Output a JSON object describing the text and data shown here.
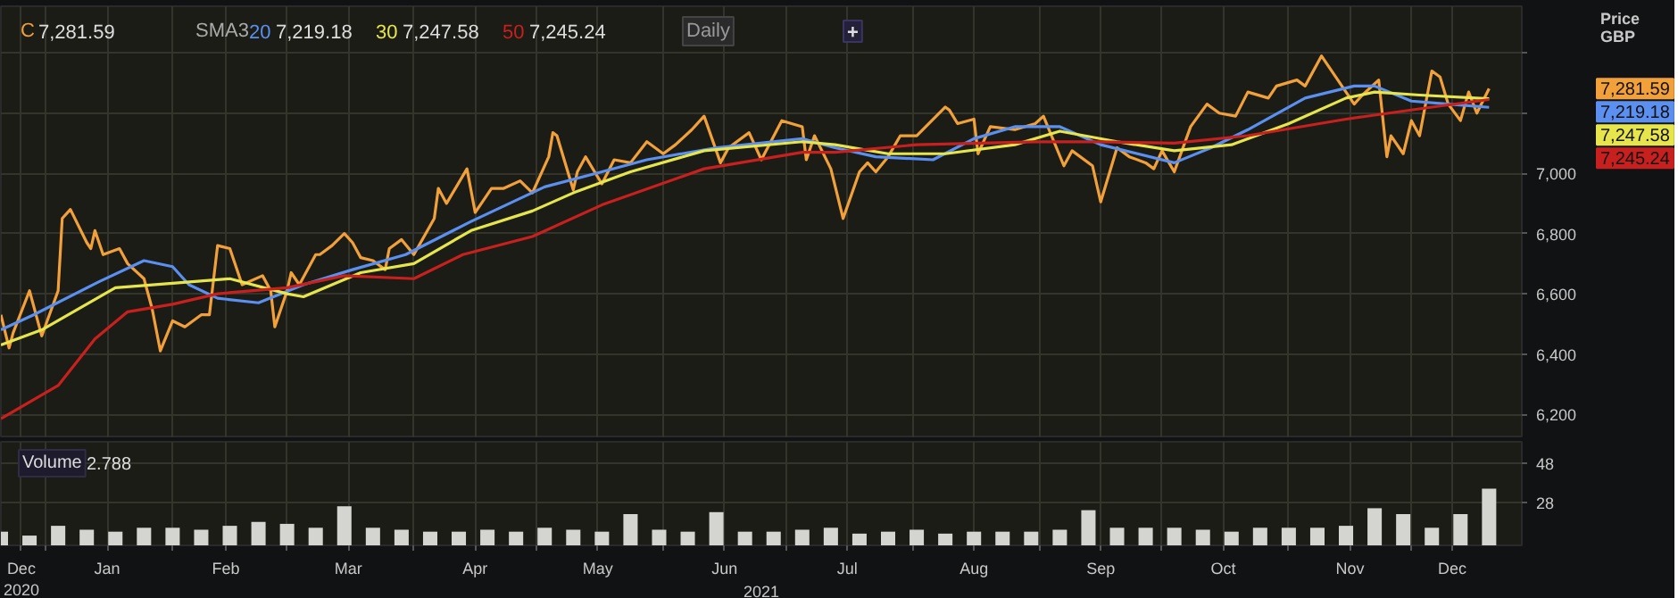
{
  "chart_data": [
    {
      "type": "line",
      "ylabel": "Price\nGBP",
      "legend": "top left",
      "grid": true,
      "tick_labels": "y",
      "xlim": [
        "2020-12-21",
        "2021-12-28"
      ],
      "ylim": [
        6120,
        7555
      ],
      "yticks": [
        {
          "value": 6200,
          "label": "6,200"
        },
        {
          "value": 6400,
          "label": "6,400"
        },
        {
          "value": 6600,
          "label": "6,600"
        },
        {
          "value": 6800,
          "label": "6,800"
        },
        {
          "value": 7000,
          "label": "7,000"
        },
        {
          "value": 7200,
          "label": null
        },
        {
          "value": 7400,
          "label": null
        }
      ],
      "xticks": [
        {
          "value": "2020-12-26",
          "label": null
        },
        {
          "value": "2021-01-01",
          "label": null
        },
        {
          "value": "2021-01-16",
          "label": null
        },
        {
          "value": "2021-02-01",
          "label": null
        },
        {
          "value": "2021-02-14",
          "label": null
        },
        {
          "value": "2021-03-01",
          "label": null
        },
        {
          "value": "2021-03-16",
          "label": null
        },
        {
          "value": "2021-04-01",
          "label": null
        },
        {
          "value": "2021-04-16",
          "label": null
        },
        {
          "value": "2021-05-01",
          "label": null
        },
        {
          "value": "2021-05-16",
          "label": null
        },
        {
          "value": "2021-06-01",
          "label": null
        },
        {
          "value": "2021-06-16",
          "label": null
        },
        {
          "value": "2021-07-01",
          "label": null
        },
        {
          "value": "2021-07-16",
          "label": null
        },
        {
          "value": "2021-08-01",
          "label": null
        },
        {
          "value": "2021-08-16",
          "label": null
        },
        {
          "value": "2021-09-01",
          "label": null
        },
        {
          "value": "2021-09-16",
          "label": null
        },
        {
          "value": "2021-10-01",
          "label": null
        },
        {
          "value": "2021-10-16",
          "label": null
        },
        {
          "value": "2021-11-01",
          "label": null
        },
        {
          "value": "2021-11-16",
          "label": null
        },
        {
          "value": "2021-12-01",
          "label": null
        },
        {
          "value": "2021-12-11",
          "label": null
        }
      ],
      "series": [
        {
          "name": "C",
          "color": "#f2a03a",
          "x": [
            "2020-12-21",
            "2020-12-23",
            "2020-12-24",
            "2020-12-28",
            "2020-12-31",
            "2021-01-04",
            "2021-01-05",
            "2021-01-07",
            "2021-01-11",
            "2021-01-12",
            "2021-01-13",
            "2021-01-15",
            "2021-01-19",
            "2021-01-21",
            "2021-01-25",
            "2021-01-27",
            "2021-01-29",
            "2021-02-01",
            "2021-02-04",
            "2021-02-08",
            "2021-02-10",
            "2021-02-12",
            "2021-02-15",
            "2021-02-18",
            "2021-02-23",
            "2021-02-25",
            "2021-02-26",
            "2021-03-01",
            "2021-03-02",
            "2021-03-04",
            "2021-03-08",
            "2021-03-09",
            "2021-03-12",
            "2021-03-15",
            "2021-03-17",
            "2021-03-19",
            "2021-03-22",
            "2021-03-25",
            "2021-03-26",
            "2021-03-29",
            "2021-04-01",
            "2021-04-06",
            "2021-04-07",
            "2021-04-09",
            "2021-04-14",
            "2021-04-16",
            "2021-04-20",
            "2021-04-23",
            "2021-04-27",
            "2021-04-30",
            "2021-05-04",
            "2021-05-05",
            "2021-05-06",
            "2021-05-10",
            "2021-05-11",
            "2021-05-13",
            "2021-05-17",
            "2021-05-20",
            "2021-05-24",
            "2021-05-28",
            "2021-06-01",
            "2021-06-04",
            "2021-06-08",
            "2021-06-11",
            "2021-06-15",
            "2021-06-17",
            "2021-06-22",
            "2021-06-25",
            "2021-06-30",
            "2021-07-05",
            "2021-07-06",
            "2021-07-08",
            "2021-07-12",
            "2021-07-15",
            "2021-07-19",
            "2021-07-21",
            "2021-07-23",
            "2021-07-26",
            "2021-07-29",
            "2021-08-02",
            "2021-08-09",
            "2021-08-10",
            "2021-08-12",
            "2021-08-16",
            "2021-08-17",
            "2021-08-20",
            "2021-08-26",
            "2021-08-31",
            "2021-09-02",
            "2021-09-07",
            "2021-09-09",
            "2021-09-14",
            "2021-09-16",
            "2021-09-20",
            "2021-09-23",
            "2021-09-27",
            "2021-09-29",
            "2021-10-01",
            "2021-10-04",
            "2021-10-08",
            "2021-10-12",
            "2021-10-15",
            "2021-10-19",
            "2021-10-22",
            "2021-10-27",
            "2021-10-29",
            "2021-11-03",
            "2021-11-05",
            "2021-11-09",
            "2021-11-11",
            "2021-11-17",
            "2021-11-19",
            "2021-11-23",
            "2021-11-25",
            "2021-11-26",
            "2021-11-29",
            "2021-12-01",
            "2021-12-03",
            "2021-12-06",
            "2021-12-08",
            "2021-12-10",
            "2021-12-13",
            "2021-12-15",
            "2021-12-17",
            "2021-12-20"
          ],
          "values": [
            6530,
            6420,
            6470,
            6610,
            6460,
            6610,
            6850,
            6880,
            6770,
            6750,
            6810,
            6730,
            6750,
            6700,
            6650,
            6550,
            6410,
            6510,
            6490,
            6530,
            6530,
            6760,
            6750,
            6630,
            6660,
            6610,
            6490,
            6610,
            6670,
            6630,
            6730,
            6730,
            6760,
            6800,
            6770,
            6720,
            6710,
            6680,
            6750,
            6780,
            6730,
            6850,
            6950,
            6900,
            7015,
            6870,
            6950,
            6950,
            6975,
            6935,
            7055,
            7135,
            7125,
            6945,
            7005,
            7055,
            6965,
            7045,
            7035,
            7105,
            7065,
            7095,
            7145,
            7190,
            7035,
            7085,
            7135,
            7045,
            7175,
            7155,
            7045,
            7125,
            7015,
            6850,
            7005,
            7035,
            7005,
            7055,
            7125,
            7125,
            7220,
            7210,
            7165,
            7180,
            7065,
            7155,
            7145,
            7165,
            7190,
            7025,
            7075,
            7025,
            6905,
            7085,
            7055,
            7035,
            7015,
            7075,
            7005,
            7155,
            7230,
            7200,
            7190,
            7270,
            7250,
            7290,
            7310,
            7290,
            7390,
            7350,
            7230,
            7260,
            7310,
            7055,
            7125,
            7065,
            7175,
            7125,
            7340,
            7320,
            7230,
            7175,
            7270,
            7200,
            7281.59
          ]
        },
        {
          "name": "20",
          "color": "#5b8ff0",
          "x": [
            "2020-12-21",
            "2020-12-29",
            "2021-01-14",
            "2021-01-25",
            "2021-02-01",
            "2021-02-05",
            "2021-02-12",
            "2021-02-22",
            "2021-03-05",
            "2021-03-17",
            "2021-03-30",
            "2021-04-15",
            "2021-05-03",
            "2021-05-17",
            "2021-05-28",
            "2021-06-14",
            "2021-07-05",
            "2021-07-13",
            "2021-07-23",
            "2021-08-06",
            "2021-08-16",
            "2021-08-26",
            "2021-09-06",
            "2021-09-16",
            "2021-10-04",
            "2021-10-13",
            "2021-10-22",
            "2021-11-05",
            "2021-11-17",
            "2021-11-22",
            "2021-12-01",
            "2021-12-10",
            "2021-12-20"
          ],
          "values": [
            6480,
            6530,
            6640,
            6710,
            6690,
            6630,
            6585,
            6570,
            6630,
            6680,
            6730,
            6840,
            6955,
            7005,
            7045,
            7085,
            7115,
            7085,
            7055,
            7045,
            7115,
            7155,
            7155,
            7095,
            7035,
            7085,
            7145,
            7250,
            7290,
            7290,
            7240,
            7230,
            7219.18
          ]
        },
        {
          "name": "30",
          "color": "#e6e64c",
          "x": [
            "2020-12-21",
            "2020-12-31",
            "2021-01-18",
            "2021-02-01",
            "2021-02-15",
            "2021-03-01",
            "2021-03-05",
            "2021-03-19",
            "2021-04-01",
            "2021-04-15",
            "2021-04-30",
            "2021-05-10",
            "2021-05-24",
            "2021-06-11",
            "2021-07-05",
            "2021-07-13",
            "2021-07-26",
            "2021-08-09",
            "2021-08-26",
            "2021-09-06",
            "2021-09-20",
            "2021-10-04",
            "2021-10-18",
            "2021-11-01",
            "2021-11-15",
            "2021-11-22",
            "2021-12-03",
            "2021-12-20"
          ],
          "values": [
            6430,
            6480,
            6620,
            6635,
            6650,
            6600,
            6590,
            6670,
            6700,
            6810,
            6875,
            6935,
            7005,
            7075,
            7105,
            7095,
            7065,
            7065,
            7095,
            7140,
            7105,
            7075,
            7095,
            7165,
            7250,
            7270,
            7260,
            7247.58
          ]
        },
        {
          "name": "50",
          "color": "#c8201e",
          "x": [
            "2020-12-21",
            "2021-01-04",
            "2021-01-13",
            "2021-01-21",
            "2021-02-01",
            "2021-02-12",
            "2021-03-01",
            "2021-03-15",
            "2021-04-01",
            "2021-04-13",
            "2021-04-30",
            "2021-05-17",
            "2021-06-11",
            "2021-07-05",
            "2021-07-13",
            "2021-08-02",
            "2021-08-31",
            "2021-09-16",
            "2021-10-04",
            "2021-10-22",
            "2021-11-15",
            "2021-12-06",
            "2021-12-20"
          ],
          "values": [
            6185,
            6295,
            6450,
            6540,
            6565,
            6600,
            6620,
            6660,
            6650,
            6730,
            6790,
            6895,
            7015,
            7070,
            7070,
            7095,
            7105,
            7105,
            7100,
            7125,
            7180,
            7220,
            7245.24
          ]
        }
      ],
      "annotations": [
        "SMA3",
        "7,281.59",
        "7,219.18",
        "7,247.58",
        "7,245.24",
        "Daily",
        "+",
        "7,281.59",
        "7,219.18",
        "7,247.58",
        "7,245.24"
      ]
    },
    {
      "type": "bar",
      "xlabel": "2021",
      "legend": "top left",
      "grid": true,
      "xlim": [
        "2020-12-21",
        "2021-12-28"
      ],
      "ylim": [
        6,
        59
      ],
      "yticks": [
        28,
        48
      ],
      "xticks": [
        {
          "value": "2020-12-26",
          "label": "Dec\n2020"
        },
        {
          "value": "2021-01-01",
          "label": null
        },
        {
          "value": "2021-01-16",
          "label": "Jan"
        },
        {
          "value": "2021-02-01",
          "label": null
        },
        {
          "value": "2021-02-14",
          "label": "Feb"
        },
        {
          "value": "2021-03-01",
          "label": null
        },
        {
          "value": "2021-03-16",
          "label": "Mar"
        },
        {
          "value": "2021-04-01",
          "label": null
        },
        {
          "value": "2021-04-16",
          "label": "Apr"
        },
        {
          "value": "2021-05-01",
          "label": null
        },
        {
          "value": "2021-05-16",
          "label": "May"
        },
        {
          "value": "2021-06-01",
          "label": null
        },
        {
          "value": "2021-06-16",
          "label": "Jun"
        },
        {
          "value": "2021-07-01",
          "label": null
        },
        {
          "value": "2021-07-16",
          "label": "Jul"
        },
        {
          "value": "2021-08-01",
          "label": null
        },
        {
          "value": "2021-08-16",
          "label": "Aug"
        },
        {
          "value": "2021-09-01",
          "label": null
        },
        {
          "value": "2021-09-16",
          "label": "Sep"
        },
        {
          "value": "2021-10-01",
          "label": null
        },
        {
          "value": "2021-10-16",
          "label": "Oct"
        },
        {
          "value": "2021-11-01",
          "label": null
        },
        {
          "value": "2021-11-16",
          "label": "Nov"
        },
        {
          "value": "2021-12-01",
          "label": null
        },
        {
          "value": "2021-12-11",
          "label": "Dec"
        }
      ],
      "x": [
        "2020-12-21",
        "2020-12-28",
        "2021-01-04",
        "2021-01-11",
        "2021-01-18",
        "2021-01-25",
        "2021-02-01",
        "2021-02-08",
        "2021-02-15",
        "2021-02-22",
        "2021-03-01",
        "2021-03-08",
        "2021-03-15",
        "2021-03-22",
        "2021-03-29",
        "2021-04-05",
        "2021-04-12",
        "2021-04-19",
        "2021-04-26",
        "2021-05-03",
        "2021-05-10",
        "2021-05-17",
        "2021-05-24",
        "2021-05-31",
        "2021-06-07",
        "2021-06-14",
        "2021-06-21",
        "2021-06-28",
        "2021-07-05",
        "2021-07-12",
        "2021-07-19",
        "2021-07-26",
        "2021-08-02",
        "2021-08-09",
        "2021-08-16",
        "2021-08-23",
        "2021-08-30",
        "2021-09-06",
        "2021-09-13",
        "2021-09-20",
        "2021-09-27",
        "2021-10-04",
        "2021-10-11",
        "2021-10-18",
        "2021-10-25",
        "2021-11-01",
        "2021-11-08",
        "2021-11-15",
        "2021-11-22",
        "2021-11-29",
        "2021-12-06",
        "2021-12-13",
        "2021-12-20"
      ],
      "series": [
        {
          "name": "Volume",
          "color": "#d4d4d0",
          "values": [
            13,
            11,
            16,
            14,
            13,
            15,
            15,
            14,
            16,
            18,
            17,
            15,
            26,
            15,
            14,
            13,
            13,
            14,
            13,
            15,
            14,
            13,
            22,
            14,
            13,
            23,
            13,
            13,
            14,
            15,
            12,
            13,
            14,
            12,
            13,
            13,
            13,
            14,
            24,
            15,
            15,
            15,
            14,
            13,
            15,
            15,
            15,
            16,
            25,
            22,
            15,
            22,
            35
          ]
        }
      ],
      "annotations": [
        "2.788"
      ]
    }
  ]
}
